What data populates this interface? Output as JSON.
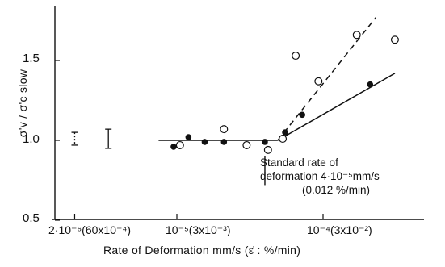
{
  "chart_data": {
    "type": "scatter",
    "x_scale": "log",
    "y_scale": "linear",
    "xlabel": "Rate of Deformation   mm/s (ε̇ : %/min)",
    "ylabel": "σ'v / σ'c slow",
    "ylim": [
      0.5,
      1.75
    ],
    "xlim": [
      2e-06,
      0.00045
    ],
    "y_ticks": [
      "0.5",
      "1.0",
      "1.5"
    ],
    "x_ticks": [
      {
        "value": 2e-06,
        "label": "2·10⁻⁶(60x10⁻⁴)"
      },
      {
        "value": 1e-05,
        "label": "10⁻⁵(3x10⁻³)"
      },
      {
        "value": 0.0001,
        "label": "10⁻⁴(3x10⁻²)"
      }
    ],
    "grid": false,
    "series": [
      {
        "marker": "filled-circle",
        "points": [
          {
            "x": 9.5e-06,
            "y": 0.96
          },
          {
            "x": 1.2e-05,
            "y": 1.02
          },
          {
            "x": 1.55e-05,
            "y": 0.99
          },
          {
            "x": 2.1e-05,
            "y": 0.99
          },
          {
            "x": 4e-05,
            "y": 0.99
          },
          {
            "x": 5.5e-05,
            "y": 1.05
          },
          {
            "x": 7.2e-05,
            "y": 1.16
          },
          {
            "x": 0.00021,
            "y": 1.35
          }
        ]
      },
      {
        "marker": "open-circle",
        "points": [
          {
            "x": 1.05e-05,
            "y": 0.97
          },
          {
            "x": 2.1e-05,
            "y": 1.07
          },
          {
            "x": 3e-05,
            "y": 0.97
          },
          {
            "x": 4.2e-05,
            "y": 0.94
          },
          {
            "x": 5.3e-05,
            "y": 1.01
          },
          {
            "x": 6.5e-05,
            "y": 1.53
          },
          {
            "x": 9.3e-05,
            "y": 1.37
          },
          {
            "x": 0.00017,
            "y": 1.66
          },
          {
            "x": 0.00031,
            "y": 1.63
          }
        ]
      }
    ],
    "lines": [
      {
        "style": "solid",
        "points": [
          {
            "x": 7.5e-06,
            "y": 1.0
          },
          {
            "x": 4.9e-05,
            "y": 1.0
          }
        ]
      },
      {
        "style": "solid",
        "points": [
          {
            "x": 4.9e-05,
            "y": 1.0
          },
          {
            "x": 0.00031,
            "y": 1.42
          }
        ]
      },
      {
        "style": "dashed",
        "points": [
          {
            "x": 4.9e-05,
            "y": 1.0
          },
          {
            "x": 0.00023,
            "y": 1.77
          }
        ]
      }
    ],
    "error_bars": [
      {
        "x": 2e-06,
        "y_low": 0.97,
        "y_high": 1.05,
        "caps": "dotted"
      },
      {
        "x": 3.4e-06,
        "y_low": 0.95,
        "y_high": 1.07,
        "caps": "solid"
      }
    ],
    "reference_marker": {
      "x": 4e-05
    },
    "annotations": [
      {
        "line1": "Standard rate of",
        "line2": "deformation 4·10⁻⁵mm/s",
        "line3": "(0.012 %/min)"
      }
    ]
  }
}
